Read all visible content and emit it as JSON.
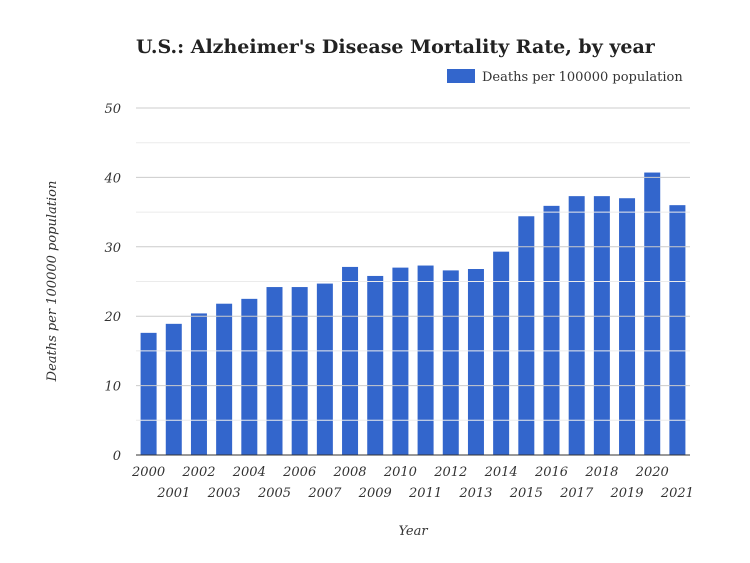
{
  "chart_data": {
    "type": "bar",
    "title": "U.S.: Alzheimer's Disease Mortality Rate, by year",
    "xlabel": "Year",
    "ylabel": "Deaths per 100000 population",
    "ylim": [
      0,
      50
    ],
    "yticks": [
      0,
      10,
      20,
      30,
      40,
      50
    ],
    "grid": true,
    "legend_position": "top-right",
    "color": "#3366cc",
    "categories": [
      "2000",
      "2001",
      "2002",
      "2003",
      "2004",
      "2005",
      "2006",
      "2007",
      "2008",
      "2009",
      "2010",
      "2011",
      "2012",
      "2013",
      "2014",
      "2015",
      "2016",
      "2017",
      "2018",
      "2019",
      "2020",
      "2021"
    ],
    "series": [
      {
        "name": "Deaths per 100000 population",
        "values": [
          17.6,
          18.9,
          20.4,
          21.8,
          22.5,
          24.2,
          24.2,
          24.7,
          27.1,
          25.8,
          27.0,
          27.3,
          26.6,
          26.8,
          29.3,
          34.4,
          35.9,
          37.3,
          37.3,
          37.0,
          40.7,
          36.0
        ]
      }
    ]
  }
}
